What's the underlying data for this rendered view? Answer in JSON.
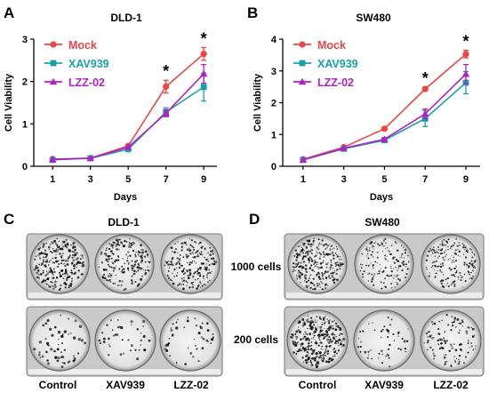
{
  "chart_data": [
    {
      "type": "line",
      "panel_label": "A",
      "title": "DLD-1",
      "xlabel": "Days",
      "ylabel": "Cell Viability",
      "x": [
        1,
        3,
        5,
        7,
        9
      ],
      "xticks": [
        "1",
        "3",
        "5",
        "7",
        "9"
      ],
      "yticks": [
        "0",
        "1",
        "2",
        "3"
      ],
      "ylim": [
        0,
        3
      ],
      "series": [
        {
          "name": "Mock",
          "color": "#ee4444",
          "marker": "circle",
          "values": [
            0.17,
            0.19,
            0.48,
            1.88,
            2.65
          ],
          "err": [
            0.02,
            0.02,
            0.03,
            0.15,
            0.15
          ]
        },
        {
          "name": "XAV939",
          "color": "#1aa0a8",
          "marker": "square",
          "values": [
            0.15,
            0.19,
            0.4,
            1.28,
            1.87
          ],
          "err": [
            0.02,
            0.02,
            0.03,
            0.1,
            0.33
          ]
        },
        {
          "name": "LZZ-02",
          "color": "#b020c8",
          "marker": "triangle",
          "values": [
            0.16,
            0.19,
            0.45,
            1.25,
            2.18
          ],
          "err": [
            0.02,
            0.02,
            0.03,
            0.08,
            0.22
          ]
        }
      ],
      "legend": "top-left",
      "annotations": [
        {
          "text": "*",
          "x": 7
        },
        {
          "text": "*",
          "x": 9
        }
      ]
    },
    {
      "type": "line",
      "panel_label": "B",
      "title": "SW480",
      "xlabel": "Days",
      "ylabel": "Cell Viability",
      "x": [
        1,
        3,
        5,
        7,
        9
      ],
      "xticks": [
        "1",
        "3",
        "5",
        "7",
        "9"
      ],
      "yticks": [
        "0",
        "1",
        "2",
        "3",
        "4"
      ],
      "ylim": [
        0,
        4
      ],
      "series": [
        {
          "name": "Mock",
          "color": "#ee4444",
          "marker": "circle",
          "values": [
            0.22,
            0.6,
            1.18,
            2.43,
            3.53
          ],
          "err": [
            0.02,
            0.03,
            0.04,
            0.06,
            0.12
          ]
        },
        {
          "name": "XAV939",
          "color": "#1aa0a8",
          "marker": "square",
          "values": [
            0.2,
            0.55,
            0.82,
            1.5,
            2.63
          ],
          "err": [
            0.02,
            0.03,
            0.05,
            0.25,
            0.35
          ]
        },
        {
          "name": "LZZ-02",
          "color": "#b020c8",
          "marker": "triangle",
          "values": [
            0.2,
            0.57,
            0.85,
            1.65,
            2.9
          ],
          "err": [
            0.02,
            0.03,
            0.05,
            0.15,
            0.3
          ]
        }
      ],
      "legend": "top-left",
      "annotations": [
        {
          "text": "*",
          "x": 7
        },
        {
          "text": "*",
          "x": 9
        }
      ]
    }
  ],
  "panel_c": {
    "label": "C",
    "title": "DLD-1"
  },
  "panel_d": {
    "label": "D",
    "title": "SW480"
  },
  "row_labels": [
    "1000 cells",
    "200 cells"
  ],
  "column_labels": [
    "Control",
    "XAV939",
    "LZZ-02",
    "Control",
    "XAV939",
    "LZZ-02"
  ]
}
